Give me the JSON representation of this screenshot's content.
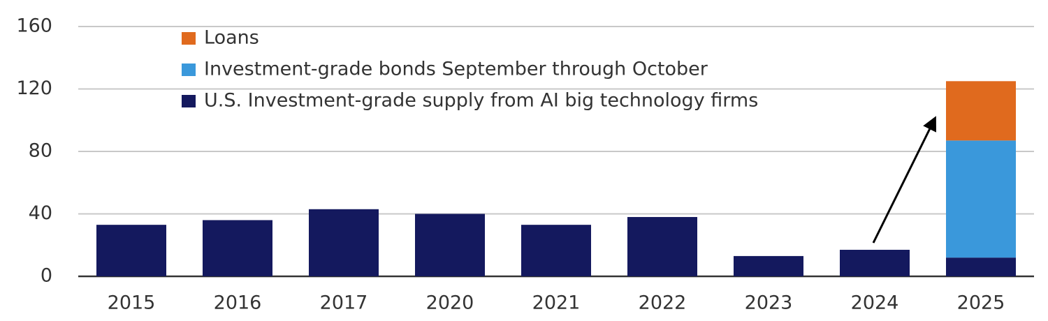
{
  "chart_data": {
    "type": "stacked-bar",
    "categories": [
      "2015",
      "2016",
      "2017",
      "2020",
      "2021",
      "2022",
      "2023",
      "2024",
      "2025"
    ],
    "series": [
      {
        "name": "U.S. Investment-grade supply from AI big technology firms",
        "color": "#14195e",
        "values": [
          33,
          36,
          43,
          40,
          33,
          38,
          13,
          17,
          12
        ]
      },
      {
        "name": "Investment-grade bonds September through October",
        "color": "#3a98db",
        "values": [
          null,
          null,
          null,
          null,
          null,
          null,
          null,
          null,
          75
        ]
      },
      {
        "name": "Loans",
        "color": "#e06a1e",
        "values": [
          null,
          null,
          null,
          null,
          null,
          null,
          null,
          null,
          38
        ]
      }
    ],
    "ylim": [
      0,
      160
    ],
    "yticks": [
      0,
      40,
      80,
      120,
      160
    ],
    "grid": true
  }
}
